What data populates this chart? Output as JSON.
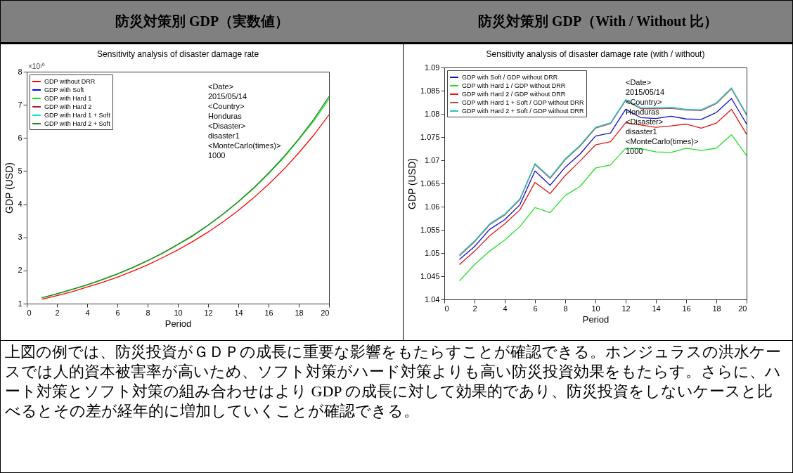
{
  "chart_data": [
    {
      "type": "line",
      "title": "防災対策別 GDP（実数値）",
      "subtitle": "Sensitivity analysis of disaster damage rate",
      "xlabel": "Period",
      "ylabel": "GDP (USD)",
      "xlim": [
        0,
        20
      ],
      "xticks": [
        0,
        2,
        4,
        6,
        8,
        10,
        12,
        14,
        16,
        18,
        20
      ],
      "ylim": [
        1,
        8
      ],
      "yticks": [
        1,
        2,
        3,
        4,
        5,
        6,
        7,
        8
      ],
      "legend": "top left",
      "grid": false,
      "marker": "none",
      "line_style": "solid",
      "x": [
        1,
        2,
        3,
        4,
        5,
        6,
        7,
        8,
        9,
        10,
        11,
        12,
        13,
        14,
        15,
        16,
        17,
        18,
        19,
        20
      ],
      "annotations": [
        "×10¹⁰",
        "<Date>",
        "2015/05/14",
        "<Country>",
        "Honduras",
        "<Disaster>",
        "disaster1",
        "<MonteCarlo(times)>",
        "1000"
      ],
      "series": [
        {
          "name": "GDP without DRR",
          "color": "#ff0000",
          "values": [
            1.13,
            1.24,
            1.36,
            1.5,
            1.64,
            1.8,
            1.98,
            2.17,
            2.39,
            2.62,
            2.88,
            3.16,
            3.47,
            3.81,
            4.19,
            4.6,
            5.05,
            5.55,
            6.09,
            6.7
          ]
        },
        {
          "name": "GDP with Soft",
          "color": "#0000ff",
          "values": [
            null,
            null,
            null,
            null,
            null,
            null,
            null,
            null,
            null,
            null,
            null,
            null,
            null,
            null,
            null,
            null,
            null,
            null,
            null,
            null
          ]
        },
        {
          "name": "GDP with Hard 1",
          "color": "#00ee00",
          "values": [
            1.17,
            1.29,
            1.42,
            1.56,
            1.72,
            1.89,
            2.08,
            2.29,
            2.52,
            2.78,
            3.04,
            3.36,
            3.7,
            4.07,
            4.47,
            4.92,
            5.4,
            5.95,
            6.52,
            7.18
          ]
        },
        {
          "name": "GDP with Hard 2",
          "color": "#a8202c",
          "values": [
            null,
            null,
            null,
            null,
            null,
            null,
            null,
            null,
            null,
            null,
            null,
            null,
            null,
            null,
            null,
            null,
            null,
            null,
            null,
            null
          ]
        },
        {
          "name": "GDP with Hard 1 + Soft",
          "color": "#00e0e0",
          "values": [
            null,
            null,
            null,
            null,
            null,
            null,
            null,
            null,
            null,
            null,
            null,
            null,
            null,
            null,
            null,
            null,
            null,
            null,
            null,
            null
          ]
        },
        {
          "name": "GDP with Hard 2 + Soft",
          "color": "#2e7d32",
          "values": [
            1.18,
            1.3,
            1.43,
            1.57,
            1.73,
            1.9,
            2.09,
            2.3,
            2.53,
            2.79,
            3.06,
            3.37,
            3.71,
            4.08,
            4.49,
            4.94,
            5.43,
            5.97,
            6.57,
            7.25
          ]
        }
      ]
    },
    {
      "type": "line",
      "title": "防災対策別 GDP（With / Without 比）",
      "subtitle": "Sensitivity analysis of disaster damage rate (with / without)",
      "xlabel": "Period",
      "ylabel": "GDP (USD)",
      "xlim": [
        0,
        20
      ],
      "xticks": [
        0,
        2,
        4,
        6,
        8,
        10,
        12,
        14,
        16,
        18,
        20
      ],
      "ylim": [
        1.04,
        1.09
      ],
      "yticks": [
        1.04,
        1.045,
        1.05,
        1.055,
        1.06,
        1.065,
        1.07,
        1.075,
        1.08,
        1.085,
        1.09
      ],
      "legend": "top left",
      "grid": false,
      "marker": "none",
      "line_style": "solid",
      "x": [
        1,
        2,
        3,
        4,
        5,
        6,
        7,
        8,
        9,
        10,
        11,
        12,
        13,
        14,
        15,
        16,
        17,
        18,
        19,
        20
      ],
      "annotations": [
        "<Date>",
        "2015/05/14",
        "<Country>",
        "Honduras",
        "<Disaster>",
        "disaster1",
        "<MonteCarlo(times)>",
        "1000"
      ],
      "series": [
        {
          "name": "GDP with Soft / GDP without DRR",
          "color": "#1010c0",
          "values": [
            1.0486,
            1.0514,
            1.0551,
            1.0572,
            1.0604,
            1.0677,
            1.0646,
            1.0685,
            1.0714,
            1.0752,
            1.0759,
            1.081,
            1.0792,
            1.079,
            1.0795,
            1.0789,
            1.0788,
            1.0803,
            1.0833,
            1.0778
          ]
        },
        {
          "name": "GDP with Hard 1 / GDP without DRR",
          "color": "#22dd22",
          "values": [
            1.044,
            1.0475,
            1.0504,
            1.0528,
            1.0557,
            1.0598,
            1.0587,
            1.0624,
            1.0644,
            1.0683,
            1.069,
            1.0726,
            1.0725,
            1.0718,
            1.0717,
            1.0726,
            1.0721,
            1.0726,
            1.0755,
            1.071
          ]
        },
        {
          "name": "GDP with Hard 2 / GDP without DRR",
          "color": "#e01818",
          "values": [
            1.0475,
            1.0504,
            1.0537,
            1.0563,
            1.0593,
            1.0652,
            1.0628,
            1.0667,
            1.0699,
            1.0733,
            1.074,
            1.0781,
            1.0776,
            1.0771,
            1.0774,
            1.0778,
            1.0769,
            1.078,
            1.081,
            1.0756
          ]
        },
        {
          "name": "GDP with Hard 1 + Soft / GDP without DRR",
          "color": "#a05a5a",
          "values": [
            1.0494,
            1.0524,
            1.0561,
            1.0582,
            1.0615,
            1.0691,
            1.0661,
            1.0701,
            1.0731,
            1.0769,
            1.0779,
            1.0829,
            1.0811,
            1.0811,
            1.0812,
            1.0808,
            1.0807,
            1.0822,
            1.0854,
            1.0797
          ]
        },
        {
          "name": "GDP with Hard 2 + Soft / GDP without DRR",
          "color": "#20c8c8",
          "values": [
            1.0496,
            1.0526,
            1.0563,
            1.0584,
            1.0617,
            1.0693,
            1.0663,
            1.0703,
            1.0733,
            1.0771,
            1.0781,
            1.0831,
            1.0813,
            1.0813,
            1.0814,
            1.081,
            1.0809,
            1.0824,
            1.0856,
            1.0799
          ]
        }
      ]
    },
    {
      "type": "other",
      "annotations": [
        "上図の例では、防災投資がＧＤＰの成長に重要な影響をもたらすことが確認できる。ホンジュラスの洪水ケースでは人的資本被害率が高いため、ソフト対策がハード対策よりも高い防災投資効果をもたらす。さらに、ハート対策とソフト対策の組み合わせはより GDP の成長に対して効果的であり、防災投資をしないケースと比べるとその差が経年的に増加していくことが確認できる。"
      ]
    }
  ]
}
